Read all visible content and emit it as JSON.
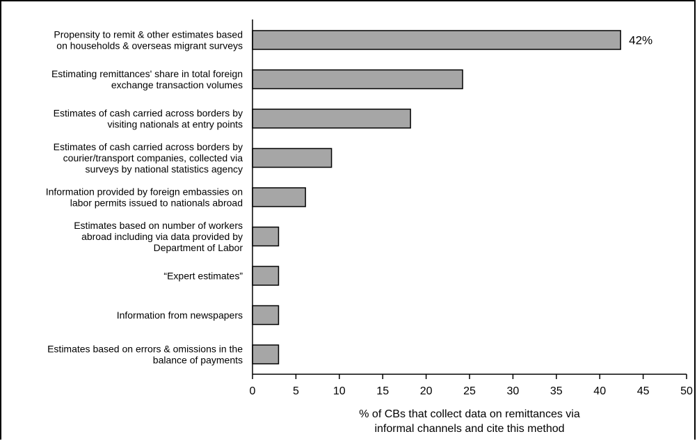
{
  "chart_data": {
    "type": "bar",
    "orientation": "horizontal",
    "categories": [
      [
        "Propensity to remit & other estimates based",
        "on households & overseas migrant surveys"
      ],
      [
        "Estimating remittances' share in total foreign",
        "exchange transaction volumes"
      ],
      [
        "Estimates of cash carried across borders by",
        "visiting nationals at entry points"
      ],
      [
        "Estimates of cash carried across borders by",
        "courier/transport companies, collected via",
        "surveys by national statistics agency"
      ],
      [
        "Information provided by foreign embassies on",
        "labor permits issued to nationals abroad"
      ],
      [
        "Estimates based on number of workers",
        "abroad including via data provided by",
        "Department of Labor"
      ],
      [
        "“Expert estimates”"
      ],
      [
        "Information from newspapers"
      ],
      [
        "Estimates based on errors & omissions in the",
        "balance of payments"
      ]
    ],
    "values": [
      42.4,
      24.2,
      18.2,
      9.1,
      6.1,
      3.0,
      3.0,
      3.0,
      3.0
    ],
    "data_labels": [
      "42%",
      "",
      "",
      "",
      "",
      "",
      "",
      "",
      ""
    ],
    "xlabel": [
      "% of CBs that collect data on remittances via",
      "informal channels and cite this method"
    ],
    "xlim": [
      0,
      50
    ],
    "xticks": [
      0,
      5,
      10,
      15,
      20,
      25,
      30,
      35,
      40,
      45,
      50
    ],
    "grid": false,
    "bar_color": "#a6a6a6"
  }
}
